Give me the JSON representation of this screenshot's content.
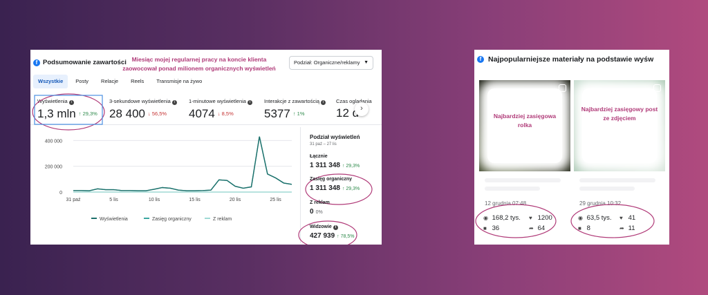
{
  "left": {
    "title": "Podsumowanie zawartości",
    "annotation_lines": [
      "Miesiąc mojej regularnej pracy na koncie klienta",
      "zaowocował ponad milionem organicznych wyświetleń"
    ],
    "dropdown": "Podział: Organiczne/reklamy",
    "tabs": [
      "Wszystkie",
      "Posty",
      "Relacje",
      "Reels",
      "Transmisje na żywo"
    ],
    "metrics": [
      {
        "label": "Wyświetlenia",
        "value": "1,3 mln",
        "change": "↑ 29,3%"
      },
      {
        "label": "3-sekundowe wyświetlenia",
        "value": "28 400",
        "change": "↓ 56,5%"
      },
      {
        "label": "1-minutowe wyświetlenia",
        "value": "4074",
        "change": "↓ 8,5%"
      },
      {
        "label": "Interakcje z zawartością",
        "value": "5377",
        "change": "↑ 1%"
      },
      {
        "label": "Czas oglądania",
        "value": "12 d",
        "change": ""
      }
    ],
    "breakdown": {
      "title": "Podział wyświetleń",
      "range": "31 paź – 27 lis",
      "total_label": "Łącznie",
      "total_value": "1 311 348",
      "total_change": "↑ 29,3%",
      "organic_label": "Zasięg organiczny",
      "organic_value": "1 311 348",
      "organic_change": "↑ 29,3%",
      "ads_label": "Z reklam",
      "ads_value": "0",
      "ads_change": "0%",
      "viewers_label": "Widzowie",
      "viewers_value": "427 939",
      "viewers_change": "↑ 78,5%"
    }
  },
  "chart_data": {
    "type": "line",
    "x": [
      "31 paź",
      "1 lis",
      "2 lis",
      "3 lis",
      "4 lis",
      "5 lis",
      "6 lis",
      "7 lis",
      "8 lis",
      "9 lis",
      "10 lis",
      "11 lis",
      "12 lis",
      "13 lis",
      "14 lis",
      "15 lis",
      "16 lis",
      "17 lis",
      "18 lis",
      "19 lis",
      "20 lis",
      "21 lis",
      "22 lis",
      "23 lis",
      "24 lis",
      "25 lis",
      "26 lis",
      "27 lis"
    ],
    "x_tick_labels": [
      "31 paź",
      "5 lis",
      "10 lis",
      "15 lis",
      "20 lis",
      "25 lis"
    ],
    "y_tick_labels": [
      "0",
      "200 000",
      "400 000"
    ],
    "ylim": [
      0,
      450000
    ],
    "series": [
      {
        "name": "Wyświetlenia",
        "color": "#1c6f6a",
        "values": [
          12000,
          12000,
          10000,
          25000,
          18000,
          18000,
          12000,
          12000,
          10000,
          10000,
          22000,
          35000,
          30000,
          15000,
          10000,
          10000,
          12000,
          15000,
          95000,
          90000,
          45000,
          30000,
          40000,
          430000,
          140000,
          110000,
          70000,
          60000
        ]
      },
      {
        "name": "Zasięg organiczny",
        "color": "#3aa6a0",
        "values": [
          12000,
          12000,
          10000,
          25000,
          18000,
          18000,
          12000,
          12000,
          10000,
          10000,
          22000,
          35000,
          30000,
          15000,
          10000,
          10000,
          12000,
          15000,
          95000,
          90000,
          45000,
          30000,
          40000,
          430000,
          140000,
          110000,
          70000,
          60000
        ]
      },
      {
        "name": "Z reklam",
        "color": "#9fd9d4",
        "values": [
          0,
          0,
          0,
          0,
          0,
          0,
          0,
          0,
          0,
          0,
          0,
          0,
          0,
          0,
          0,
          0,
          0,
          0,
          0,
          0,
          0,
          0,
          0,
          0,
          0,
          0,
          0,
          0
        ]
      }
    ],
    "grid": true,
    "legend": "bottom"
  },
  "right": {
    "title": "Najpopularniejsze materiały na podstawie wyśw",
    "cards": [
      {
        "label": "Najbardziej zasięgowa rolka",
        "date": "12 grudnia 07:48",
        "views": "168,2 tys.",
        "likes": "1200",
        "comments": "36",
        "shares": "64"
      },
      {
        "label": "Najbardziej zasięgowy post ze zdjęciem",
        "date": "29 grudnia 10:32",
        "views": "63,5 tys.",
        "likes": "41",
        "comments": "8",
        "shares": "11"
      }
    ]
  },
  "colors": {
    "annotation": "#b03a78",
    "facebook": "#1877f2",
    "up": "#2e8a4b",
    "down": "#c53434"
  },
  "icons": [
    "facebook-icon",
    "info-icon",
    "chevron-right-icon",
    "caret-down-icon",
    "eye-icon",
    "heart-icon",
    "comment-icon",
    "share-icon",
    "reel-icon",
    "photo-icon"
  ]
}
